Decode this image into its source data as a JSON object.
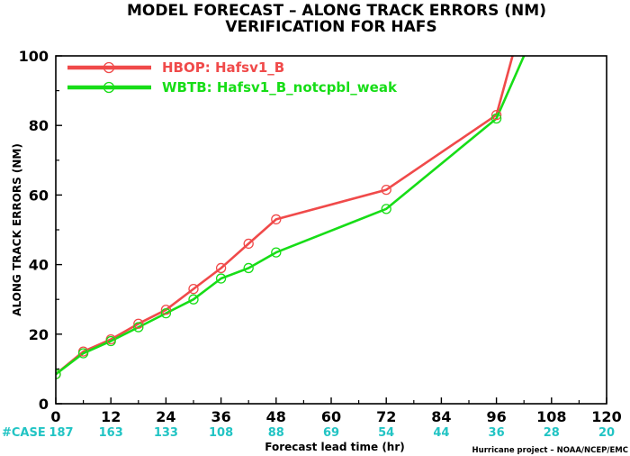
{
  "colors": {
    "HBOP": "#f04a4a",
    "WBTB": "#17dd17",
    "case_text": "#22c4c4"
  },
  "chart_data": {
    "type": "line",
    "title": "MODEL FORECAST – ALONG TRACK ERRORS (NM)",
    "subtitle": "VERIFICATION FOR HAFS",
    "xlabel": "Forecast lead time (hr)",
    "ylabel": "ALONG TRACK ERRORS (NM)",
    "xlim": [
      0,
      120
    ],
    "ylim": [
      0,
      100
    ],
    "xticks": [
      "0",
      "12",
      "24",
      "36",
      "48",
      "60",
      "72",
      "84",
      "96",
      "108",
      "120"
    ],
    "yticks": [
      "0",
      "20",
      "40",
      "60",
      "80",
      "100"
    ],
    "grid": false,
    "legend_position": "top-left",
    "case_label": "#CASE",
    "case_counts": [
      {
        "x": 0,
        "label": "187"
      },
      {
        "x": 12,
        "label": "163"
      },
      {
        "x": 24,
        "label": "133"
      },
      {
        "x": 36,
        "label": "108"
      },
      {
        "x": 48,
        "label": "88"
      },
      {
        "x": 60,
        "label": "69"
      },
      {
        "x": 72,
        "label": "54"
      },
      {
        "x": 84,
        "label": "44"
      },
      {
        "x": 96,
        "label": "36"
      },
      {
        "x": 108,
        "label": "28"
      },
      {
        "x": 120,
        "label": "20"
      }
    ],
    "series": [
      {
        "name": "HBOP: Hafsv1_B",
        "color": "#f04a4a",
        "x": [
          0,
          6,
          12,
          18,
          24,
          30,
          36,
          42,
          48,
          72,
          96
        ],
        "y": [
          8.5,
          15,
          18.5,
          23,
          27,
          33,
          39,
          46,
          53,
          61.5,
          83
        ],
        "continues_to": {
          "x": 99.5,
          "y": 100
        }
      },
      {
        "name": "WBTB: Hafsv1_B_notcpbl_weak",
        "color": "#17dd17",
        "x": [
          0,
          6,
          12,
          18,
          24,
          30,
          36,
          42,
          48,
          72,
          96
        ],
        "y": [
          8.5,
          14.5,
          18,
          22,
          26,
          30,
          36,
          39,
          43.5,
          56,
          82
        ],
        "continues_to": {
          "x": 102,
          "y": 100
        }
      }
    ]
  },
  "credit": "Hurricane project – NOAA/NCEP/EMC"
}
